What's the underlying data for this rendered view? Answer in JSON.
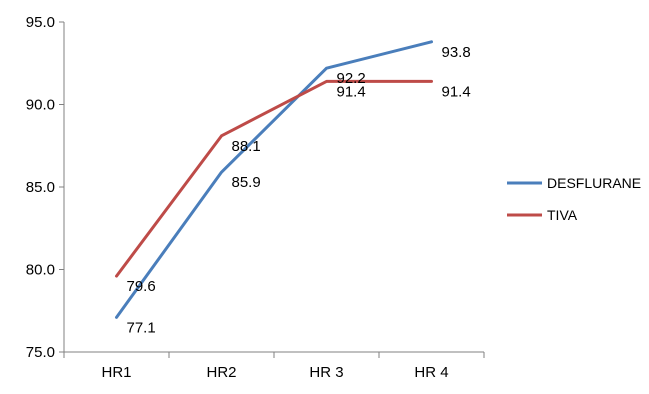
{
  "chart_data": {
    "type": "line",
    "title": "",
    "xlabel": "",
    "ylabel": "",
    "categories": [
      "HR1",
      "HR2",
      "HR 3",
      "HR 4"
    ],
    "ylim": [
      75.0,
      95.0
    ],
    "yticks": [
      "75.0",
      "80.0",
      "85.0",
      "90.0",
      "95.0"
    ],
    "grid": false,
    "legend_position": "right",
    "series": [
      {
        "name": "DESFLURANE",
        "color": "#4a7ebb",
        "values": [
          77.1,
          85.9,
          92.2,
          93.8
        ],
        "labels": [
          "77.1",
          "85.9",
          "92.2",
          "93.8"
        ]
      },
      {
        "name": "TIVA",
        "color": "#be4b48",
        "values": [
          79.6,
          88.1,
          91.4,
          91.4
        ],
        "labels": [
          "79.6",
          "88.1",
          "91.4",
          "91.4"
        ]
      }
    ]
  }
}
